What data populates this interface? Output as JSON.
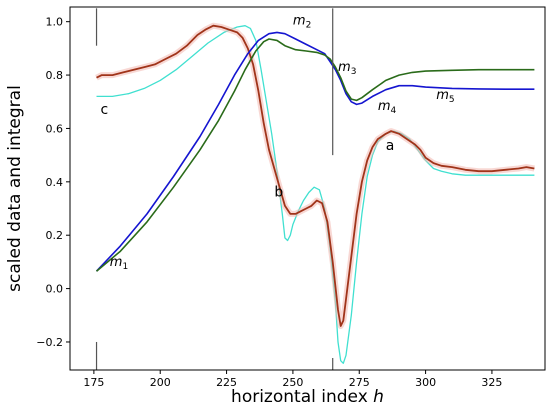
{
  "chart_data": {
    "type": "line",
    "xlabel": "horizontal index",
    "xlabel_var": "h",
    "ylabel": "scaled data and integral",
    "xlim": [
      166,
      345
    ],
    "ylim": [
      -0.305,
      1.055
    ],
    "xticks": [
      175,
      200,
      225,
      250,
      275,
      300,
      325
    ],
    "yticks": [
      -0.2,
      0.0,
      0.2,
      0.4,
      0.6,
      0.8,
      1.0
    ],
    "ytick_labels": [
      "−0.2",
      "0.0",
      "0.2",
      "0.4",
      "0.6",
      "0.8",
      "1.0"
    ],
    "grid": false,
    "legend": "none",
    "vertical_markers": [
      {
        "x": 176,
        "segments": [
          [
            0.91,
            1.05
          ],
          [
            -0.305,
            -0.2
          ]
        ]
      },
      {
        "x": 265,
        "segments": [
          [
            0.5,
            1.05
          ],
          [
            -0.305,
            -0.26
          ]
        ]
      }
    ],
    "series": [
      {
        "color": "#40e0d0",
        "style": "thin",
        "points": [
          [
            176,
            0.72
          ],
          [
            182,
            0.72
          ],
          [
            188,
            0.73
          ],
          [
            194,
            0.75
          ],
          [
            200,
            0.78
          ],
          [
            206,
            0.82
          ],
          [
            212,
            0.87
          ],
          [
            218,
            0.92
          ],
          [
            224,
            0.96
          ],
          [
            229,
            0.98
          ],
          [
            232,
            0.985
          ],
          [
            234,
            0.975
          ],
          [
            236,
            0.93
          ],
          [
            238,
            0.82
          ],
          [
            240,
            0.7
          ],
          [
            242,
            0.58
          ],
          [
            244,
            0.44
          ],
          [
            246,
            0.28
          ],
          [
            247,
            0.19
          ],
          [
            248,
            0.18
          ],
          [
            249,
            0.2
          ],
          [
            250,
            0.24
          ],
          [
            252,
            0.29
          ],
          [
            254,
            0.33
          ],
          [
            256,
            0.36
          ],
          [
            258,
            0.38
          ],
          [
            260,
            0.37
          ],
          [
            262,
            0.3
          ],
          [
            264,
            0.15
          ],
          [
            266,
            -0.05
          ],
          [
            267,
            -0.2
          ],
          [
            268,
            -0.27
          ],
          [
            269,
            -0.28
          ],
          [
            270,
            -0.25
          ],
          [
            272,
            -0.1
          ],
          [
            274,
            0.1
          ],
          [
            276,
            0.28
          ],
          [
            278,
            0.42
          ],
          [
            280,
            0.5
          ],
          [
            282,
            0.55
          ],
          [
            285,
            0.58
          ],
          [
            288,
            0.59
          ],
          [
            291,
            0.58
          ],
          [
            294,
            0.56
          ],
          [
            297,
            0.52
          ],
          [
            300,
            0.48
          ],
          [
            303,
            0.45
          ],
          [
            306,
            0.44
          ],
          [
            310,
            0.43
          ],
          [
            315,
            0.425
          ],
          [
            320,
            0.425
          ],
          [
            330,
            0.425
          ],
          [
            341,
            0.425
          ]
        ]
      },
      {
        "color": "#a0341a",
        "style": "thick-noisy",
        "points": [
          [
            176,
            0.79
          ],
          [
            178,
            0.8
          ],
          [
            182,
            0.8
          ],
          [
            186,
            0.81
          ],
          [
            190,
            0.82
          ],
          [
            194,
            0.83
          ],
          [
            198,
            0.84
          ],
          [
            202,
            0.86
          ],
          [
            206,
            0.88
          ],
          [
            210,
            0.91
          ],
          [
            214,
            0.95
          ],
          [
            217,
            0.97
          ],
          [
            220,
            0.985
          ],
          [
            223,
            0.98
          ],
          [
            226,
            0.97
          ],
          [
            229,
            0.96
          ],
          [
            231,
            0.94
          ],
          [
            233,
            0.9
          ],
          [
            235,
            0.84
          ],
          [
            237,
            0.74
          ],
          [
            239,
            0.62
          ],
          [
            241,
            0.52
          ],
          [
            243,
            0.45
          ],
          [
            245,
            0.38
          ],
          [
            247,
            0.31
          ],
          [
            249,
            0.28
          ],
          [
            251,
            0.28
          ],
          [
            253,
            0.29
          ],
          [
            255,
            0.3
          ],
          [
            257,
            0.31
          ],
          [
            259,
            0.33
          ],
          [
            261,
            0.32
          ],
          [
            263,
            0.25
          ],
          [
            265,
            0.1
          ],
          [
            267,
            -0.08
          ],
          [
            268,
            -0.14
          ],
          [
            269,
            -0.12
          ],
          [
            270,
            -0.04
          ],
          [
            272,
            0.12
          ],
          [
            274,
            0.28
          ],
          [
            276,
            0.4
          ],
          [
            278,
            0.48
          ],
          [
            280,
            0.53
          ],
          [
            282,
            0.56
          ],
          [
            285,
            0.58
          ],
          [
            287,
            0.59
          ],
          [
            290,
            0.58
          ],
          [
            293,
            0.56
          ],
          [
            296,
            0.54
          ],
          [
            298,
            0.52
          ],
          [
            300,
            0.49
          ],
          [
            303,
            0.47
          ],
          [
            306,
            0.46
          ],
          [
            310,
            0.455
          ],
          [
            315,
            0.445
          ],
          [
            320,
            0.44
          ],
          [
            325,
            0.44
          ],
          [
            330,
            0.445
          ],
          [
            335,
            0.45
          ],
          [
            338,
            0.455
          ],
          [
            341,
            0.45
          ]
        ]
      },
      {
        "color": "#1515d0",
        "style": "normal",
        "points": [
          [
            176,
            0.065
          ],
          [
            185,
            0.16
          ],
          [
            195,
            0.28
          ],
          [
            205,
            0.42
          ],
          [
            215,
            0.57
          ],
          [
            222,
            0.69
          ],
          [
            228,
            0.8
          ],
          [
            233,
            0.88
          ],
          [
            237,
            0.93
          ],
          [
            241,
            0.955
          ],
          [
            244,
            0.96
          ],
          [
            247,
            0.955
          ],
          [
            251,
            0.935
          ],
          [
            255,
            0.915
          ],
          [
            259,
            0.895
          ],
          [
            262,
            0.88
          ],
          [
            264,
            0.85
          ],
          [
            266,
            0.82
          ],
          [
            268,
            0.78
          ],
          [
            270,
            0.73
          ],
          [
            272,
            0.7
          ],
          [
            274,
            0.69
          ],
          [
            276,
            0.695
          ],
          [
            280,
            0.72
          ],
          [
            285,
            0.745
          ],
          [
            290,
            0.76
          ],
          [
            295,
            0.76
          ],
          [
            300,
            0.755
          ],
          [
            310,
            0.75
          ],
          [
            320,
            0.748
          ],
          [
            330,
            0.747
          ],
          [
            341,
            0.747
          ]
        ]
      },
      {
        "color": "#2a6b1a",
        "style": "normal",
        "points": [
          [
            176,
            0.065
          ],
          [
            185,
            0.14
          ],
          [
            195,
            0.25
          ],
          [
            205,
            0.38
          ],
          [
            215,
            0.52
          ],
          [
            222,
            0.63
          ],
          [
            228,
            0.74
          ],
          [
            232,
            0.82
          ],
          [
            236,
            0.89
          ],
          [
            239,
            0.925
          ],
          [
            241,
            0.935
          ],
          [
            244,
            0.93
          ],
          [
            247,
            0.91
          ],
          [
            251,
            0.895
          ],
          [
            255,
            0.89
          ],
          [
            259,
            0.885
          ],
          [
            262,
            0.875
          ],
          [
            264,
            0.86
          ],
          [
            266,
            0.83
          ],
          [
            268,
            0.79
          ],
          [
            270,
            0.74
          ],
          [
            272,
            0.71
          ],
          [
            274,
            0.705
          ],
          [
            276,
            0.715
          ],
          [
            280,
            0.745
          ],
          [
            285,
            0.78
          ],
          [
            290,
            0.8
          ],
          [
            295,
            0.81
          ],
          [
            300,
            0.815
          ],
          [
            310,
            0.818
          ],
          [
            320,
            0.82
          ],
          [
            330,
            0.82
          ],
          [
            341,
            0.82
          ]
        ]
      }
    ],
    "annotations": [
      {
        "id": "c",
        "text": "c",
        "x": 177.5,
        "y": 0.655
      },
      {
        "id": "b",
        "text": "b",
        "x": 243,
        "y": 0.345
      },
      {
        "id": "a",
        "text": "a",
        "x": 285,
        "y": 0.52
      },
      {
        "id": "m1",
        "text": "m",
        "sub": "1",
        "x": 181,
        "y": 0.085
      },
      {
        "id": "m2",
        "text": "m",
        "sub": "2",
        "x": 250,
        "y": 0.99
      },
      {
        "id": "m3",
        "text": "m",
        "sub": "3",
        "x": 267,
        "y": 0.815
      },
      {
        "id": "m4",
        "text": "m",
        "sub": "4",
        "x": 282,
        "y": 0.67
      },
      {
        "id": "m5",
        "text": "m",
        "sub": "5",
        "x": 304,
        "y": 0.71
      }
    ]
  }
}
